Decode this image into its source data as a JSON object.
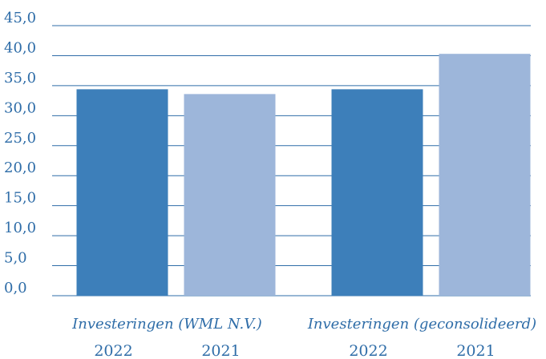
{
  "chart_data": {
    "type": "bar",
    "categories": [
      "Investeringen (WML N.V.)",
      "Investeringen (geconsolideerd)"
    ],
    "series": [
      {
        "name": "2022",
        "color": "#3d7fba",
        "values": [
          34.4,
          34.4
        ]
      },
      {
        "name": "2021",
        "color": "#9db6da",
        "values": [
          33.6,
          40.3
        ]
      }
    ],
    "ylim": [
      0,
      45
    ],
    "yticks": [
      {
        "value": 0,
        "label": "0,0"
      },
      {
        "value": 5,
        "label": "5,0"
      },
      {
        "value": 10,
        "label": "10,0"
      },
      {
        "value": 15,
        "label": "15,0"
      },
      {
        "value": 20,
        "label": "20,0"
      },
      {
        "value": 25,
        "label": "25,0"
      },
      {
        "value": 30,
        "label": "30,0"
      },
      {
        "value": 35,
        "label": "35,0"
      },
      {
        "value": 40,
        "label": "40,0"
      },
      {
        "value": 45,
        "label": "45,0"
      }
    ],
    "grid": true
  }
}
